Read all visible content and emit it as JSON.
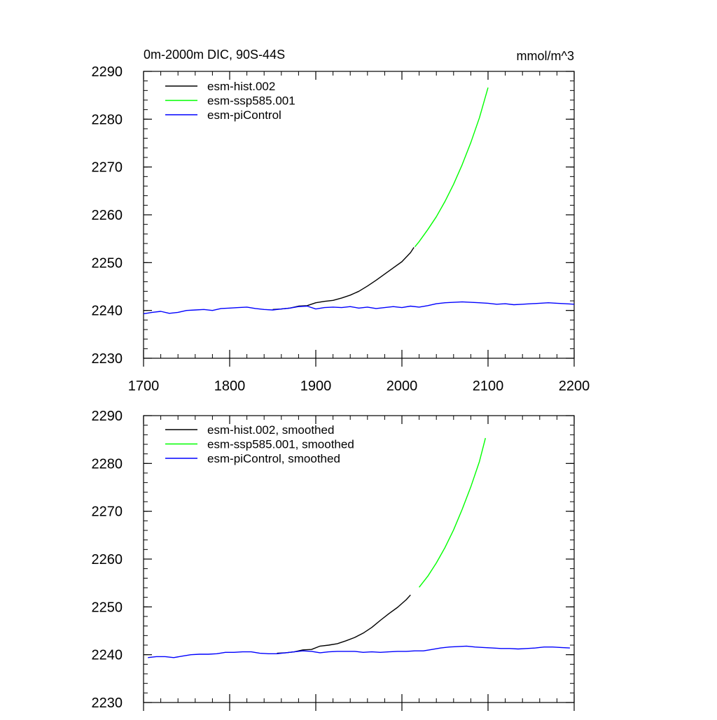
{
  "chart_data": [
    {
      "type": "line",
      "title": "0m-2000m DIC, 90S-44S",
      "units": "mmol/m^3",
      "xlim": [
        1700,
        2200
      ],
      "ylim": [
        2230,
        2290
      ],
      "xticks": [
        1700,
        1800,
        1900,
        2000,
        2100,
        2200
      ],
      "xtick_labels": [
        "1700",
        "1800",
        "1900",
        "2000",
        "2100",
        "2200"
      ],
      "yticks": [
        2230,
        2240,
        2250,
        2260,
        2270,
        2280,
        2290
      ],
      "ytick_labels": [
        "2230",
        "2240",
        "2250",
        "2260",
        "2270",
        "2280",
        "2290"
      ],
      "legend": "top-left",
      "series": [
        {
          "name": "esm-hist.002",
          "color": "#000000",
          "x": [
            1850,
            1860,
            1870,
            1880,
            1890,
            1900,
            1910,
            1920,
            1930,
            1940,
            1950,
            1960,
            1970,
            1980,
            1990,
            2000,
            2010,
            2014
          ],
          "y": [
            2240.2,
            2240.3,
            2240.5,
            2240.9,
            2241.0,
            2241.6,
            2241.9,
            2242.1,
            2242.6,
            2243.2,
            2244.0,
            2245.1,
            2246.3,
            2247.6,
            2248.9,
            2250.2,
            2252.1,
            2253.2
          ]
        },
        {
          "name": "esm-ssp585.001",
          "color": "#00ff00",
          "x": [
            2015,
            2020,
            2030,
            2040,
            2050,
            2060,
            2070,
            2080,
            2090,
            2100
          ],
          "y": [
            2253.3,
            2254.4,
            2256.9,
            2259.6,
            2262.8,
            2266.4,
            2270.5,
            2275.1,
            2280.3,
            2286.6
          ]
        },
        {
          "name": "esm-piControl",
          "color": "#0000ff",
          "x": [
            1700,
            1710,
            1720,
            1730,
            1740,
            1750,
            1760,
            1770,
            1780,
            1790,
            1800,
            1810,
            1820,
            1830,
            1840,
            1850,
            1860,
            1870,
            1880,
            1890,
            1900,
            1910,
            1920,
            1930,
            1940,
            1950,
            1960,
            1970,
            1980,
            1990,
            2000,
            2010,
            2020,
            2030,
            2040,
            2050,
            2060,
            2070,
            2080,
            2090,
            2100,
            2110,
            2120,
            2130,
            2140,
            2150,
            2160,
            2170,
            2180,
            2190,
            2200
          ],
          "y": [
            2239.3,
            2239.6,
            2239.8,
            2239.4,
            2239.6,
            2240.0,
            2240.1,
            2240.2,
            2240.0,
            2240.4,
            2240.5,
            2240.6,
            2240.7,
            2240.4,
            2240.2,
            2240.1,
            2240.3,
            2240.5,
            2240.8,
            2240.9,
            2240.3,
            2240.6,
            2240.7,
            2240.6,
            2240.8,
            2240.5,
            2240.7,
            2240.4,
            2240.6,
            2240.8,
            2240.6,
            2240.9,
            2240.7,
            2241.0,
            2241.4,
            2241.6,
            2241.7,
            2241.8,
            2241.7,
            2241.6,
            2241.5,
            2241.3,
            2241.4,
            2241.2,
            2241.3,
            2241.4,
            2241.5,
            2241.6,
            2241.5,
            2241.4,
            2241.3
          ]
        }
      ]
    },
    {
      "type": "line",
      "title": "",
      "units": "",
      "xlim": [
        1700,
        2200
      ],
      "ylim": [
        2230,
        2290
      ],
      "xticks": [
        1700,
        1800,
        1900,
        2000,
        2100,
        2200
      ],
      "xtick_labels": [],
      "yticks": [
        2230,
        2240,
        2250,
        2260,
        2270,
        2280,
        2290
      ],
      "ytick_labels": [
        "2230",
        "2240",
        "2250",
        "2260",
        "2270",
        "2280",
        "2290"
      ],
      "legend": "top-left",
      "series": [
        {
          "name": "esm-hist.002, smoothed",
          "color": "#000000",
          "x": [
            1855,
            1865,
            1875,
            1885,
            1895,
            1905,
            1915,
            1925,
            1935,
            1945,
            1955,
            1965,
            1975,
            1985,
            1995,
            2005,
            2010
          ],
          "y": [
            2240.3,
            2240.4,
            2240.6,
            2241.0,
            2241.1,
            2241.8,
            2242.0,
            2242.3,
            2242.9,
            2243.6,
            2244.5,
            2245.7,
            2247.2,
            2248.6,
            2249.9,
            2251.5,
            2252.5
          ]
        },
        {
          "name": "esm-ssp585.001, smoothed",
          "color": "#00ff00",
          "x": [
            2020,
            2030,
            2040,
            2050,
            2060,
            2070,
            2080,
            2090,
            2097
          ],
          "y": [
            2254.1,
            2256.4,
            2259.2,
            2262.4,
            2266.1,
            2270.4,
            2275.1,
            2280.4,
            2285.3
          ]
        },
        {
          "name": "esm-piControl, smoothed",
          "color": "#0000ff",
          "x": [
            1705,
            1715,
            1725,
            1735,
            1745,
            1755,
            1765,
            1775,
            1785,
            1795,
            1805,
            1815,
            1825,
            1835,
            1845,
            1855,
            1865,
            1875,
            1885,
            1895,
            1905,
            1915,
            1925,
            1935,
            1945,
            1955,
            1965,
            1975,
            1985,
            1995,
            2005,
            2015,
            2025,
            2035,
            2045,
            2055,
            2065,
            2075,
            2085,
            2095,
            2105,
            2115,
            2125,
            2135,
            2145,
            2155,
            2165,
            2175,
            2185,
            2195
          ],
          "y": [
            2239.4,
            2239.6,
            2239.6,
            2239.4,
            2239.7,
            2240.0,
            2240.1,
            2240.1,
            2240.2,
            2240.5,
            2240.5,
            2240.6,
            2240.6,
            2240.3,
            2240.2,
            2240.2,
            2240.4,
            2240.6,
            2240.8,
            2240.7,
            2240.4,
            2240.6,
            2240.7,
            2240.7,
            2240.7,
            2240.5,
            2240.6,
            2240.5,
            2240.6,
            2240.7,
            2240.7,
            2240.8,
            2240.8,
            2241.1,
            2241.4,
            2241.6,
            2241.7,
            2241.8,
            2241.6,
            2241.5,
            2241.4,
            2241.3,
            2241.3,
            2241.2,
            2241.3,
            2241.4,
            2241.6,
            2241.6,
            2241.5,
            2241.4
          ]
        }
      ]
    }
  ]
}
